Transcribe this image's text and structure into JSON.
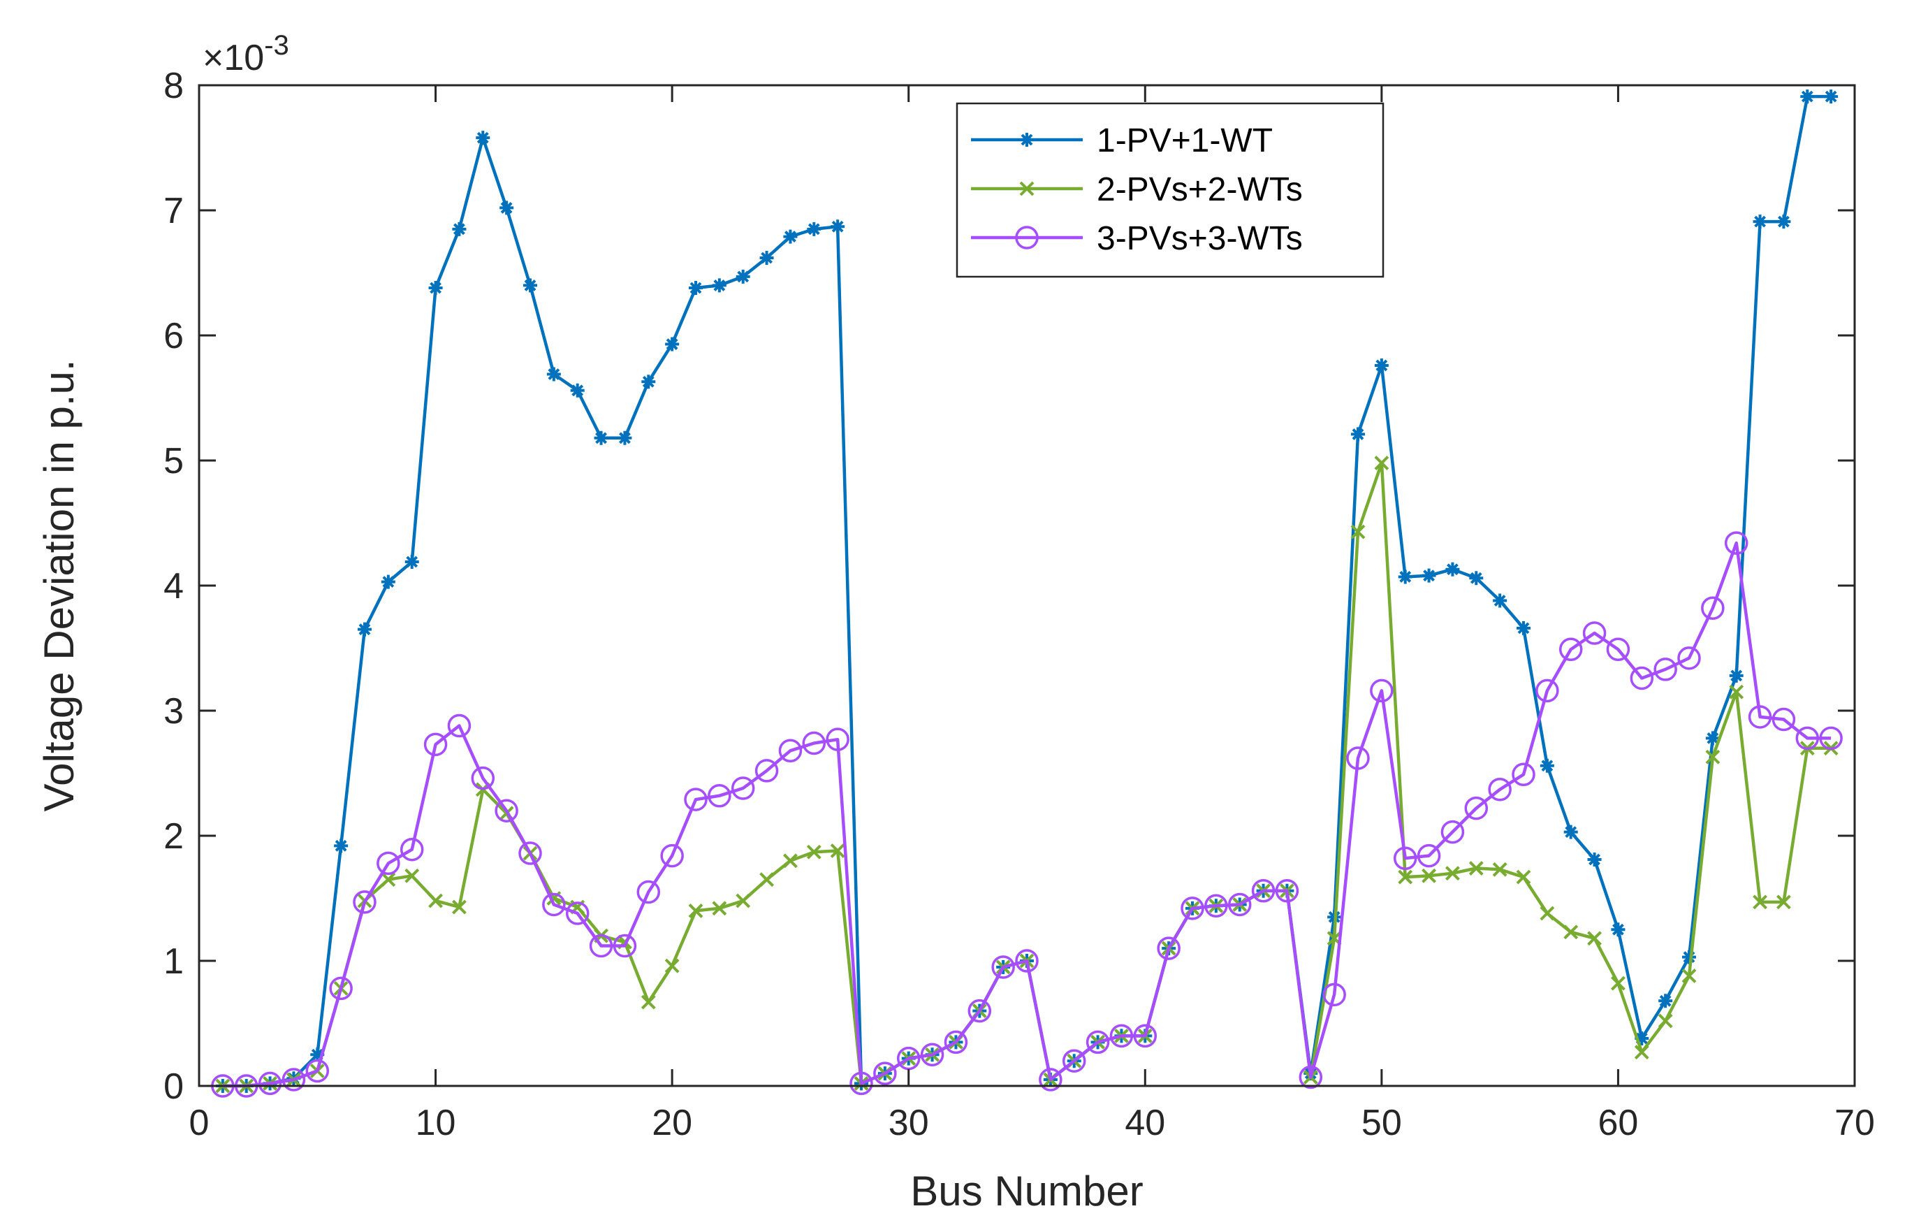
{
  "chart_data": {
    "type": "line",
    "title": "",
    "xlabel": "Bus Number",
    "ylabel": "Voltage Deviation in p.u.",
    "exponent_label": "×10",
    "exponent_power": "-3",
    "xlim": [
      0,
      70
    ],
    "ylim": [
      0,
      8
    ],
    "xticks": [
      0,
      10,
      20,
      30,
      40,
      50,
      60,
      70
    ],
    "yticks": [
      0,
      1,
      2,
      3,
      4,
      5,
      6,
      7,
      8
    ],
    "grid": false,
    "legend_position": "top-center",
    "x": [
      1,
      2,
      3,
      4,
      5,
      6,
      7,
      8,
      9,
      10,
      11,
      12,
      13,
      14,
      15,
      16,
      17,
      18,
      19,
      20,
      21,
      22,
      23,
      24,
      25,
      26,
      27,
      28,
      29,
      30,
      31,
      32,
      33,
      34,
      35,
      36,
      37,
      38,
      39,
      40,
      41,
      42,
      43,
      44,
      45,
      46,
      47,
      48,
      49,
      50,
      51,
      52,
      53,
      54,
      55,
      56,
      57,
      58,
      59,
      60,
      61,
      62,
      63,
      64,
      65,
      66,
      67,
      68,
      69
    ],
    "series": [
      {
        "name": "1-PV+1-WT",
        "color": "#0072BD",
        "marker": "asterisk",
        "values": [
          0.0,
          0.0,
          0.02,
          0.06,
          0.25,
          1.92,
          3.65,
          4.03,
          4.19,
          6.38,
          6.85,
          7.58,
          7.02,
          6.4,
          5.69,
          5.56,
          5.18,
          5.18,
          5.63,
          5.93,
          6.38,
          6.4,
          6.47,
          6.62,
          6.79,
          6.85,
          6.87,
          0.02,
          0.1,
          0.22,
          0.25,
          0.35,
          0.6,
          0.95,
          1.0,
          0.05,
          0.2,
          0.35,
          0.4,
          0.4,
          1.1,
          1.42,
          1.44,
          1.45,
          1.56,
          1.56,
          0.1,
          1.35,
          5.21,
          5.76,
          4.07,
          4.08,
          4.13,
          4.06,
          3.88,
          3.66,
          2.56,
          2.03,
          1.81,
          1.25,
          0.38,
          0.68,
          1.03,
          2.78,
          3.28,
          6.91,
          6.91,
          7.91,
          7.91
        ]
      },
      {
        "name": "2-PVs+2-WTs",
        "color": "#77AC30",
        "marker": "x",
        "values": [
          0.0,
          0.0,
          0.02,
          0.05,
          0.12,
          0.78,
          1.48,
          1.65,
          1.68,
          1.48,
          1.43,
          2.37,
          2.18,
          1.86,
          1.5,
          1.43,
          1.2,
          1.15,
          0.67,
          0.96,
          1.4,
          1.42,
          1.48,
          1.65,
          1.8,
          1.87,
          1.88,
          0.02,
          0.1,
          0.22,
          0.25,
          0.35,
          0.6,
          0.95,
          1.0,
          0.05,
          0.2,
          0.35,
          0.4,
          0.4,
          1.1,
          1.42,
          1.44,
          1.45,
          1.56,
          1.56,
          0.07,
          1.18,
          4.43,
          4.98,
          1.67,
          1.68,
          1.7,
          1.74,
          1.73,
          1.67,
          1.38,
          1.23,
          1.18,
          0.82,
          0.27,
          0.52,
          0.88,
          2.63,
          3.15,
          1.47,
          1.47,
          2.7,
          2.7
        ]
      },
      {
        "name": "3-PVs+3-WTs",
        "color": "#A64DFF",
        "marker": "circle",
        "values": [
          0.0,
          0.0,
          0.02,
          0.05,
          0.12,
          0.78,
          1.47,
          1.78,
          1.89,
          2.73,
          2.88,
          2.46,
          2.2,
          1.86,
          1.45,
          1.38,
          1.12,
          1.12,
          1.55,
          1.84,
          2.29,
          2.32,
          2.38,
          2.52,
          2.68,
          2.74,
          2.77,
          0.02,
          0.1,
          0.22,
          0.25,
          0.35,
          0.6,
          0.95,
          1.0,
          0.05,
          0.2,
          0.35,
          0.4,
          0.4,
          1.1,
          1.42,
          1.44,
          1.45,
          1.56,
          1.56,
          0.07,
          0.73,
          2.62,
          3.16,
          1.82,
          1.84,
          2.03,
          2.22,
          2.37,
          2.49,
          3.16,
          3.49,
          3.62,
          3.49,
          3.26,
          3.33,
          3.42,
          3.82,
          4.34,
          2.95,
          2.93,
          2.78,
          2.78
        ]
      }
    ]
  }
}
